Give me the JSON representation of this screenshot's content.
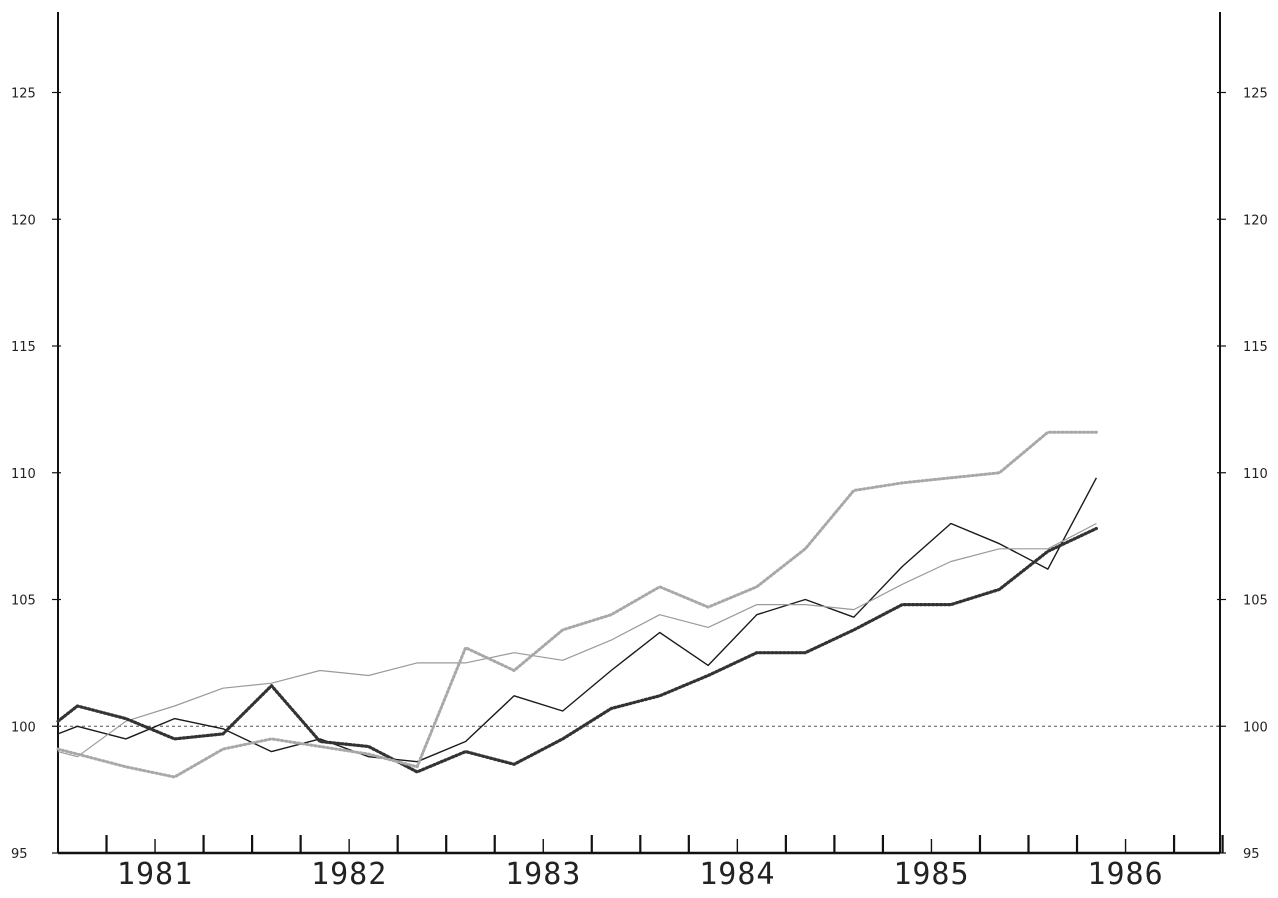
{
  "chart_data": {
    "type": "line",
    "title": "",
    "xlabel": "",
    "ylabel": "",
    "xlim": [
      1980.5,
      1986.5
    ],
    "ylim": [
      95,
      128
    ],
    "y_ticks": [
      95,
      100,
      105,
      110,
      115,
      120,
      125
    ],
    "x_tick_labels": [
      "1981",
      "1982",
      "1983",
      "1984",
      "1985",
      "1986"
    ],
    "x_tick_positions": [
      1981,
      1982,
      1983,
      1984,
      1985,
      1986
    ],
    "reference_line": {
      "y": 100,
      "style": "dashed"
    },
    "grid": false,
    "legend": "none",
    "colors": {
      "dark": "#1a1a1a",
      "light": "#9a9a9a",
      "dotted_dark": "#333333",
      "dotted_light": "#a8a8a8",
      "axis": "#111111",
      "reference": "#555555"
    },
    "series": [
      {
        "style": "solid-dark",
        "x": [
          1980.5,
          1980.6,
          1980.85,
          1981.1,
          1981.35,
          1981.6,
          1981.85,
          1982.1,
          1982.35,
          1982.6,
          1982.85,
          1983.1,
          1983.35,
          1983.6,
          1983.85,
          1984.1,
          1984.35,
          1984.6,
          1984.85,
          1985.1,
          1985.35,
          1985.6,
          1985.85
        ],
        "values": [
          99.7,
          100.0,
          99.5,
          100.3,
          99.9,
          99.0,
          99.5,
          98.8,
          98.6,
          99.4,
          101.2,
          100.6,
          102.2,
          103.7,
          102.4,
          104.4,
          105.0,
          104.3,
          106.3,
          108.0,
          107.2,
          106.2,
          109.8
        ]
      },
      {
        "style": "solid-light",
        "x": [
          1980.5,
          1980.6,
          1980.85,
          1981.1,
          1981.35,
          1981.6,
          1981.85,
          1982.1,
          1982.35,
          1982.6,
          1982.85,
          1983.1,
          1983.35,
          1983.6,
          1983.85,
          1984.1,
          1984.35,
          1984.6,
          1984.85,
          1985.1,
          1985.35,
          1985.6,
          1985.85
        ],
        "values": [
          99.0,
          98.8,
          100.2,
          100.8,
          101.5,
          101.7,
          102.2,
          102.0,
          102.5,
          102.5,
          102.9,
          102.6,
          103.4,
          104.4,
          103.9,
          104.8,
          104.8,
          104.6,
          105.6,
          106.5,
          107.0,
          107.0,
          108.0
        ]
      },
      {
        "style": "dotted-dark",
        "x": [
          1980.5,
          1980.6,
          1980.85,
          1981.1,
          1981.35,
          1981.6,
          1981.85,
          1982.1,
          1982.35,
          1982.6,
          1982.85,
          1983.1,
          1983.35,
          1983.6,
          1983.85,
          1984.1,
          1984.35,
          1984.6,
          1984.85,
          1985.1,
          1985.35,
          1985.6,
          1985.85
        ],
        "values": [
          100.2,
          100.8,
          100.3,
          99.5,
          99.7,
          101.6,
          99.4,
          99.2,
          98.2,
          99.0,
          98.5,
          99.5,
          100.7,
          101.2,
          102.0,
          102.9,
          102.9,
          103.8,
          104.8,
          104.8,
          105.4,
          106.9,
          107.8
        ]
      },
      {
        "style": "dotted-light",
        "x": [
          1980.5,
          1980.6,
          1980.85,
          1981.1,
          1981.35,
          1981.6,
          1981.85,
          1982.1,
          1982.35,
          1982.6,
          1982.85,
          1983.1,
          1983.35,
          1983.6,
          1983.85,
          1984.1,
          1984.35,
          1984.6,
          1984.85,
          1985.1,
          1985.35,
          1985.6,
          1985.85
        ],
        "values": [
          99.1,
          98.9,
          98.4,
          98.0,
          99.1,
          99.5,
          99.2,
          98.9,
          98.4,
          103.1,
          102.2,
          103.8,
          104.4,
          105.5,
          104.7,
          105.5,
          107.0,
          109.3,
          109.6,
          109.8,
          110.0,
          111.6,
          111.6
        ]
      }
    ]
  }
}
